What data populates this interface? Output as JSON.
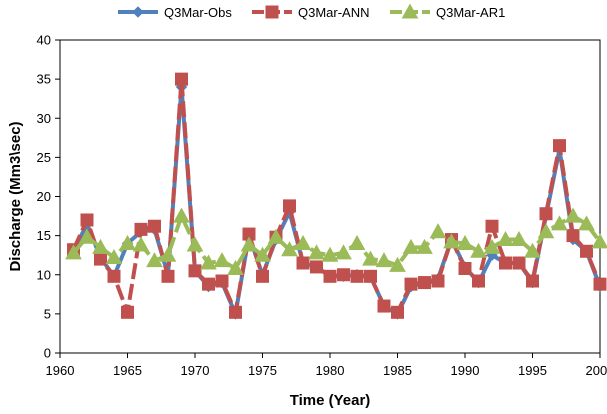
{
  "chart_data": {
    "type": "line",
    "title": "",
    "xlabel": "Time (Year)",
    "ylabel": "Discharge (Mm3\\sec)",
    "xlim": [
      1960,
      2000
    ],
    "ylim": [
      0,
      40
    ],
    "xticks": [
      1960,
      1965,
      1970,
      1975,
      1980,
      1985,
      1990,
      1995,
      2000
    ],
    "yticks": [
      0,
      5,
      10,
      15,
      20,
      25,
      30,
      35,
      40
    ],
    "grid": false,
    "legend_position": "top",
    "x": [
      1961,
      1962,
      1963,
      1964,
      1965,
      1966,
      1967,
      1968,
      1969,
      1970,
      1971,
      1972,
      1973,
      1974,
      1975,
      1976,
      1977,
      1978,
      1979,
      1980,
      1981,
      1982,
      1983,
      1984,
      1985,
      1986,
      1987,
      1988,
      1989,
      1990,
      1991,
      1992,
      1993,
      1994,
      1995,
      1996,
      1997,
      1998,
      1999,
      2000
    ],
    "series": [
      {
        "name": "Q3Mar-Obs",
        "color": "#4f81bd",
        "marker": "diamond",
        "values": [
          13.0,
          16.5,
          12.2,
          9.8,
          14.0,
          15.5,
          15.8,
          10.0,
          34.0,
          10.5,
          8.5,
          9.0,
          5.0,
          15.0,
          10.0,
          14.5,
          18.0,
          11.5,
          11.0,
          9.8,
          9.8,
          10.0,
          9.8,
          6.0,
          5.0,
          8.5,
          9.0,
          9.5,
          14.5,
          11.0,
          9.0,
          12.5,
          11.5,
          11.5,
          9.0,
          17.5,
          26.0,
          14.5,
          13.0,
          8.5
        ]
      },
      {
        "name": "Q3Mar-ANN",
        "color": "#c0504d",
        "marker": "square",
        "values": [
          13.2,
          17.0,
          12.0,
          9.8,
          5.2,
          15.8,
          16.2,
          9.8,
          35.0,
          10.5,
          8.8,
          9.2,
          5.2,
          15.2,
          9.8,
          14.8,
          18.8,
          11.5,
          11.0,
          9.8,
          10.0,
          9.8,
          9.8,
          6.0,
          5.2,
          8.8,
          9.0,
          9.2,
          14.5,
          10.8,
          9.2,
          16.2,
          11.5,
          11.5,
          9.2,
          17.8,
          26.5,
          15.0,
          13.0,
          8.8
        ]
      },
      {
        "name": "Q3Mar-AR1",
        "color": "#9bbb59",
        "marker": "triangle",
        "values": [
          12.8,
          14.8,
          13.5,
          12.2,
          14.0,
          13.8,
          11.8,
          12.5,
          17.5,
          13.8,
          11.5,
          11.8,
          10.8,
          13.8,
          12.5,
          14.8,
          13.2,
          14.0,
          12.8,
          12.5,
          12.8,
          14.0,
          12.0,
          11.8,
          11.2,
          13.5,
          13.5,
          15.5,
          14.2,
          14.0,
          13.0,
          13.5,
          14.5,
          14.5,
          13.0,
          15.5,
          16.5,
          17.5,
          16.5,
          14.2
        ]
      }
    ]
  }
}
